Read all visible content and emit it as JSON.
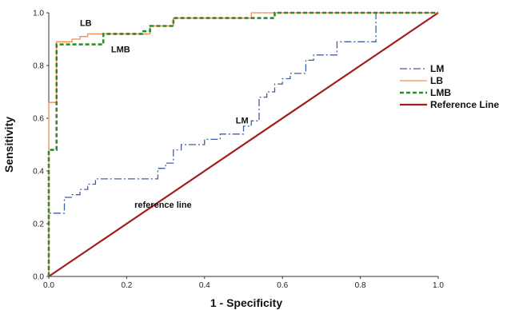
{
  "chart_data": {
    "type": "line",
    "title": "",
    "xlabel": "1 - Specificity",
    "ylabel": "Sensitivity",
    "xlim": [
      0,
      1
    ],
    "ylim": [
      0,
      1
    ],
    "xticks": [
      "0.0",
      "0.2",
      "0.4",
      "0.6",
      "0.8",
      "1.0"
    ],
    "yticks": [
      "0.0",
      "0.2",
      "0.4",
      "0.6",
      "0.8",
      "1.0"
    ],
    "grid": false,
    "legend_position": "right",
    "series": [
      {
        "name": "LM",
        "color": "#3f5fa0",
        "style": "dash-dot",
        "x": [
          0,
          0,
          0.04,
          0.04,
          0.06,
          0.06,
          0.08,
          0.08,
          0.1,
          0.1,
          0.12,
          0.12,
          0.28,
          0.28,
          0.3,
          0.3,
          0.32,
          0.32,
          0.34,
          0.34,
          0.4,
          0.4,
          0.44,
          0.44,
          0.5,
          0.5,
          0.52,
          0.52,
          0.54,
          0.54,
          0.56,
          0.56,
          0.58,
          0.58,
          0.6,
          0.6,
          0.62,
          0.62,
          0.66,
          0.66,
          0.68,
          0.68,
          0.74,
          0.74,
          0.84,
          0.84,
          1.0
        ],
        "y": [
          0,
          0.24,
          0.24,
          0.3,
          0.3,
          0.31,
          0.31,
          0.33,
          0.33,
          0.35,
          0.35,
          0.37,
          0.37,
          0.41,
          0.41,
          0.43,
          0.43,
          0.48,
          0.48,
          0.5,
          0.5,
          0.52,
          0.52,
          0.54,
          0.54,
          0.57,
          0.57,
          0.59,
          0.59,
          0.68,
          0.68,
          0.7,
          0.7,
          0.73,
          0.73,
          0.75,
          0.75,
          0.77,
          0.77,
          0.82,
          0.82,
          0.84,
          0.84,
          0.89,
          0.89,
          1.0,
          1.0
        ]
      },
      {
        "name": "LB",
        "color": "#f08d4e",
        "style": "solid",
        "x": [
          0,
          0,
          0.02,
          0.02,
          0.06,
          0.06,
          0.08,
          0.08,
          0.1,
          0.1,
          0.26,
          0.26,
          0.32,
          0.32,
          0.52,
          0.52,
          1.0
        ],
        "y": [
          0,
          0.66,
          0.66,
          0.89,
          0.89,
          0.9,
          0.9,
          0.91,
          0.91,
          0.92,
          0.92,
          0.95,
          0.95,
          0.98,
          0.98,
          1.0,
          1.0
        ]
      },
      {
        "name": "LMB",
        "color": "#2e8b2e",
        "style": "dashed",
        "x": [
          0,
          0,
          0.02,
          0.02,
          0.14,
          0.14,
          0.24,
          0.24,
          0.26,
          0.26,
          0.32,
          0.32,
          0.58,
          0.58,
          1.0
        ],
        "y": [
          0,
          0.48,
          0.48,
          0.88,
          0.88,
          0.92,
          0.92,
          0.93,
          0.93,
          0.95,
          0.95,
          0.98,
          0.98,
          1.0,
          1.0
        ]
      },
      {
        "name": "Reference Line",
        "color": "#a01e1e",
        "style": "solid",
        "x": [
          0,
          1
        ],
        "y": [
          0,
          1
        ]
      }
    ],
    "annotations": [
      {
        "text": "LB",
        "x": 0.08,
        "y": 0.95
      },
      {
        "text": "LMB",
        "x": 0.16,
        "y": 0.85
      },
      {
        "text": "LM",
        "x": 0.48,
        "y": 0.58
      },
      {
        "text": "reference line",
        "x": 0.22,
        "y": 0.26
      }
    ]
  }
}
